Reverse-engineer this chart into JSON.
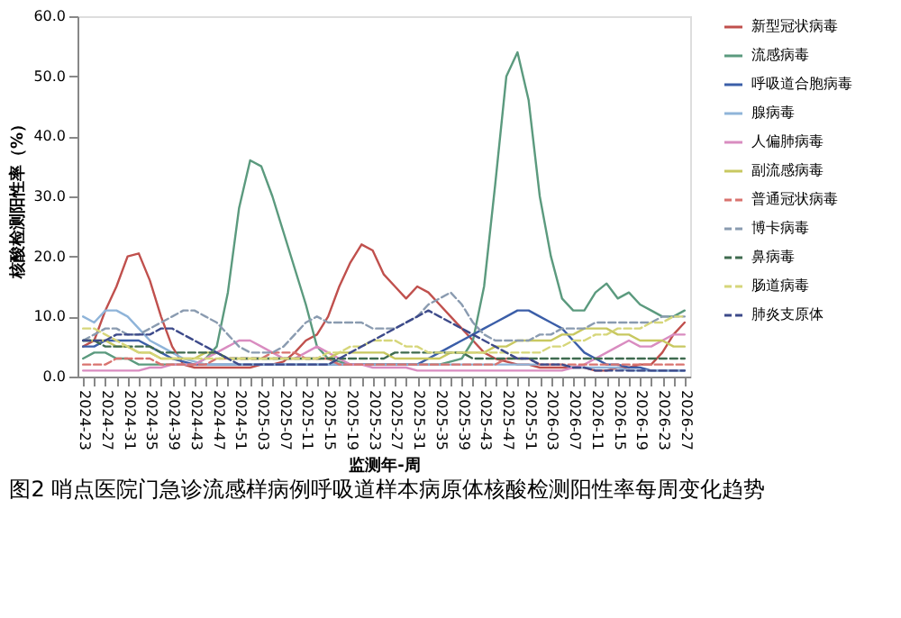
{
  "chart_data": {
    "type": "line",
    "title": "图2 哨点医院门急诊流感样病例呼吸道样本病原体核酸检测阳性率每周变化趋势",
    "xlabel": "监测年-周",
    "ylabel": "核酸检测阳性率（%）",
    "categories": [
      "2024-23",
      null,
      "2024-27",
      null,
      "2024-31",
      null,
      "2024-35",
      null,
      "2024-39",
      null,
      "2024-43",
      null,
      "2024-47",
      null,
      "2024-51",
      null,
      "2025-03",
      null,
      "2025-07",
      null,
      "2025-11",
      null,
      "2025-15",
      null,
      "2025-19",
      null,
      "2025-23",
      null,
      "2025-27",
      null,
      "2025-31",
      null,
      "2025-35",
      null,
      "2025-39",
      null,
      "2025-43",
      null,
      "2025-47",
      null,
      "2025-51",
      null,
      "2026-03",
      null,
      "2026-07",
      null,
      "2026-11",
      null,
      "2026-15",
      null,
      "2026-19",
      null,
      "2026-23",
      null,
      "2026-27"
    ],
    "ylim": [
      0,
      60
    ],
    "yticks": [
      {
        "value": 0,
        "label": "0.0"
      },
      {
        "value": 10,
        "label": "10.0"
      },
      {
        "value": 20,
        "label": "20.0"
      },
      {
        "value": 30,
        "label": "30.0"
      },
      {
        "value": 40,
        "label": "40.0"
      },
      {
        "value": 50,
        "label": "50.0"
      },
      {
        "value": 60,
        "label": "60.0"
      }
    ],
    "grid": false,
    "legend": "right",
    "series": [
      {
        "name": "新型冠状病毒",
        "color": "#c0504d",
        "line_style": "solid",
        "values": [
          5,
          6,
          11,
          15,
          20,
          20.5,
          16,
          10,
          5,
          2,
          1.5,
          1.5,
          1.5,
          1.5,
          1.5,
          1.5,
          2,
          2,
          2.5,
          4,
          6,
          7,
          10,
          15,
          19,
          22,
          21,
          17,
          15,
          13,
          15,
          14,
          12,
          10,
          8,
          6,
          4,
          3,
          2.5,
          2,
          2,
          1.5,
          1.5,
          1.5,
          1.5,
          1.5,
          1,
          1,
          1.5,
          1.5,
          2,
          2,
          4,
          7,
          9
        ]
      },
      {
        "name": "流感病毒",
        "color": "#5b9a7e",
        "line_style": "solid",
        "values": [
          3,
          4,
          4,
          3,
          3,
          2,
          2,
          2,
          2,
          2,
          2,
          3,
          5,
          14,
          28,
          36,
          35,
          30,
          24,
          18,
          12,
          5,
          3,
          2.5,
          2,
          2,
          2,
          2,
          2,
          2,
          2,
          2,
          2,
          2.5,
          3,
          6,
          15,
          32,
          50,
          54,
          46,
          30,
          20,
          13,
          11,
          11,
          14,
          15.5,
          13,
          14,
          12,
          11,
          10,
          10,
          11
        ]
      },
      {
        "name": "呼吸道合胞病毒",
        "color": "#3b5ea8",
        "line_style": "solid",
        "values": [
          5,
          5,
          6,
          6,
          6,
          6,
          5,
          4,
          3,
          2.5,
          2,
          2,
          2,
          2,
          2,
          2,
          2,
          2,
          2,
          2,
          2,
          2,
          2,
          2,
          2,
          2,
          2,
          2,
          2,
          2,
          2,
          3,
          4,
          5,
          6,
          7,
          8,
          9,
          10,
          11,
          11,
          10,
          9,
          8,
          6,
          4,
          3,
          2,
          2,
          1.5,
          1.5,
          1,
          1,
          1,
          1
        ]
      },
      {
        "name": "腺病毒",
        "color": "#8fb4d9",
        "line_style": "solid",
        "values": [
          10,
          9,
          11,
          11,
          10,
          8,
          6,
          5,
          4,
          3,
          2.5,
          2,
          2,
          2,
          2,
          2,
          2,
          2,
          2,
          2,
          2,
          2,
          2,
          2,
          2,
          2,
          2,
          2,
          2,
          2,
          2,
          2,
          2,
          2,
          2,
          2,
          2,
          2,
          2,
          2,
          2,
          2,
          2,
          2,
          1.5,
          1.5,
          1.5,
          1.5,
          1.5,
          1,
          1,
          1,
          1,
          1,
          1
        ]
      },
      {
        "name": "人偏肺病毒",
        "color": "#d98cc0",
        "line_style": "solid",
        "values": [
          1,
          1,
          1,
          1,
          1,
          1,
          1.5,
          1.5,
          2,
          2,
          2,
          3,
          4,
          5,
          6,
          6,
          5,
          4,
          3,
          3,
          4,
          5,
          4,
          3,
          2,
          2,
          1.5,
          1.5,
          1.5,
          1.5,
          1,
          1,
          1,
          1,
          1,
          1,
          1,
          1,
          1,
          1,
          1,
          1,
          1,
          1,
          1.5,
          2,
          3,
          4,
          5,
          6,
          5,
          5,
          6,
          7,
          7
        ]
      },
      {
        "name": "副流感病毒",
        "color": "#c8c860",
        "line_style": "solid",
        "values": [
          6,
          6,
          6,
          5,
          5,
          4,
          4,
          3,
          3,
          3,
          3,
          4,
          4,
          3,
          3,
          3,
          3,
          3,
          3,
          3,
          3,
          3,
          3,
          4,
          4,
          4,
          4,
          4,
          3,
          3,
          3,
          3,
          3,
          4,
          4,
          4,
          4,
          5,
          5,
          6,
          6,
          6,
          6,
          7,
          7,
          8,
          8,
          8,
          7,
          7,
          6,
          6,
          6,
          5,
          5
        ]
      },
      {
        "name": "普通冠状病毒",
        "color": "#d9736f",
        "line_style": "dashed",
        "values": [
          2,
          2,
          2,
          3,
          3,
          3,
          3,
          2,
          2,
          2,
          2,
          2,
          3,
          3,
          3,
          3,
          3,
          4,
          4,
          4,
          3,
          3,
          3,
          2,
          2,
          2,
          2,
          2,
          2,
          2,
          2,
          2,
          2,
          2,
          2,
          2,
          2,
          2,
          3,
          3,
          3,
          2,
          2,
          2,
          2,
          2,
          2,
          2,
          2,
          2,
          2,
          2,
          2,
          2,
          2
        ]
      },
      {
        "name": "博卡病毒",
        "color": "#8a9bb0",
        "line_style": "dashed",
        "values": [
          6,
          7,
          8,
          8,
          7,
          7,
          8,
          9,
          10,
          11,
          11,
          10,
          9,
          7,
          5,
          4,
          4,
          4,
          5,
          7,
          9,
          10,
          9,
          9,
          9,
          9,
          8,
          8,
          8,
          9,
          10,
          12,
          13,
          14,
          12,
          9,
          7,
          6,
          6,
          6,
          6,
          7,
          7,
          8,
          8,
          8,
          9,
          9,
          9,
          9,
          9,
          9,
          10,
          10,
          10
        ]
      },
      {
        "name": "鼻病毒",
        "color": "#3f6b4f",
        "line_style": "dashed",
        "values": [
          6,
          6,
          5,
          5,
          5,
          5,
          5,
          4,
          4,
          4,
          4,
          4,
          4,
          3,
          3,
          3,
          3,
          3,
          3,
          3,
          3,
          3,
          3,
          3,
          3,
          3,
          3,
          3,
          4,
          4,
          4,
          4,
          4,
          4,
          4,
          3,
          3,
          3,
          3,
          3,
          3,
          3,
          3,
          3,
          3,
          3,
          3,
          3,
          3,
          3,
          3,
          3,
          3,
          3,
          3
        ]
      },
      {
        "name": "肠道病毒",
        "color": "#d6d67a",
        "line_style": "dashed",
        "values": [
          8,
          8,
          7,
          6,
          5,
          4,
          4,
          3,
          3,
          3,
          3,
          3,
          3,
          3,
          3,
          3,
          3,
          3,
          3,
          3,
          3,
          3,
          4,
          4,
          5,
          5,
          6,
          6,
          6,
          5,
          5,
          4,
          4,
          4,
          4,
          4,
          4,
          4,
          4,
          4,
          4,
          4,
          5,
          5,
          6,
          6,
          7,
          7,
          8,
          8,
          8,
          9,
          9,
          10,
          10
        ]
      },
      {
        "name": "肺炎支原体",
        "color": "#3d4a8a",
        "line_style": "dashed",
        "values": [
          6,
          6,
          6,
          7,
          7,
          7,
          7,
          8,
          8,
          7,
          6,
          5,
          4,
          3,
          2,
          2,
          2,
          2,
          2,
          2,
          2,
          2,
          2,
          3,
          4,
          5,
          6,
          7,
          8,
          9,
          10,
          11,
          10,
          9,
          8,
          7,
          6,
          5,
          4,
          3,
          3,
          2,
          2,
          2,
          1.5,
          1.5,
          1,
          1,
          1,
          1,
          1,
          1,
          1,
          1,
          1
        ]
      }
    ]
  }
}
